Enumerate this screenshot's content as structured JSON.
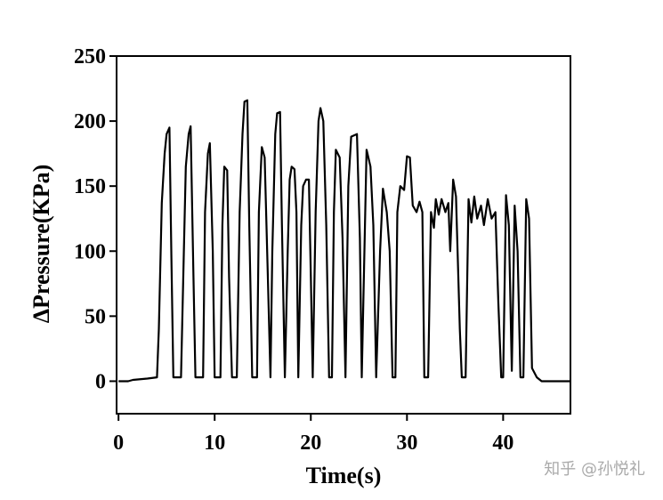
{
  "chart_data": {
    "type": "line",
    "xlabel": "Time(s)",
    "ylabel": "ΔPressure(KPa)",
    "watermark": "知乎 @孙悦礼",
    "xlim": [
      -0.2,
      47
    ],
    "ylim": [
      -25,
      250
    ],
    "xticks": [
      0,
      10,
      20,
      30,
      40
    ],
    "yticks": [
      0,
      50,
      100,
      150,
      200,
      250
    ],
    "series": [
      {
        "color": "#000000",
        "x": [
          0,
          1,
          1.5,
          3,
          4,
          4.2,
          4.5,
          4.8,
          5.0,
          5.3,
          5.5,
          5.7,
          6.5,
          6.8,
          7.0,
          7.3,
          7.5,
          7.8,
          8.0,
          8.8,
          9.0,
          9.3,
          9.5,
          9.8,
          10.0,
          10.6,
          10.8,
          11.0,
          11.3,
          11.5,
          11.8,
          12.3,
          12.6,
          12.9,
          13.1,
          13.4,
          13.6,
          13.9,
          14.4,
          14.6,
          14.9,
          15.2,
          15.5,
          15.8,
          16.0,
          16.3,
          16.5,
          16.8,
          17.0,
          17.3,
          17.6,
          17.8,
          18.0,
          18.3,
          18.5,
          18.7,
          19.0,
          19.2,
          19.5,
          19.8,
          20.0,
          20.2,
          20.5,
          20.8,
          21.0,
          21.3,
          21.6,
          21.9,
          22.2,
          22.4,
          22.6,
          23.0,
          23.3,
          23.6,
          23.9,
          24.2,
          24.8,
          25.1,
          25.3,
          25.6,
          25.8,
          26.2,
          26.5,
          26.8,
          27.2,
          27.5,
          27.9,
          28.2,
          28.5,
          28.8,
          29.0,
          29.3,
          29.7,
          30.0,
          30.3,
          30.6,
          31.0,
          31.3,
          31.6,
          31.8,
          32.2,
          32.5,
          32.8,
          33.0,
          33.3,
          33.6,
          34.0,
          34.3,
          34.5,
          34.8,
          35.1,
          35.5,
          35.7,
          36.1,
          36.4,
          36.7,
          37.0,
          37.3,
          37.7,
          38.0,
          38.4,
          38.8,
          39.2,
          39.5,
          39.8,
          40.0,
          40.3,
          40.6,
          40.9,
          41.2,
          41.5,
          41.8,
          42.1,
          42.4,
          42.7,
          43.0,
          43.5,
          44.0,
          47
        ],
        "values": [
          0,
          0,
          1,
          2,
          3,
          40,
          137,
          175,
          190,
          195,
          95,
          3,
          3,
          100,
          165,
          190,
          196,
          80,
          3,
          3,
          130,
          175,
          183,
          100,
          3,
          3,
          120,
          165,
          162,
          80,
          3,
          3,
          130,
          190,
          215,
          216,
          120,
          3,
          3,
          130,
          180,
          172,
          90,
          3,
          100,
          190,
          206,
          207,
          120,
          3,
          100,
          155,
          165,
          163,
          130,
          3,
          120,
          150,
          155,
          155,
          80,
          3,
          130,
          200,
          210,
          200,
          120,
          3,
          3,
          130,
          178,
          172,
          110,
          3,
          150,
          188,
          190,
          110,
          3,
          110,
          178,
          165,
          120,
          3,
          100,
          148,
          130,
          100,
          3,
          3,
          130,
          150,
          147,
          173,
          172,
          135,
          130,
          138,
          130,
          3,
          3,
          130,
          118,
          140,
          128,
          140,
          130,
          137,
          100,
          155,
          142,
          40,
          3,
          3,
          140,
          122,
          142,
          125,
          135,
          120,
          140,
          125,
          130,
          60,
          3,
          3,
          143,
          120,
          8,
          135,
          100,
          3,
          3,
          140,
          125,
          10,
          3,
          0,
          0
        ]
      }
    ]
  }
}
